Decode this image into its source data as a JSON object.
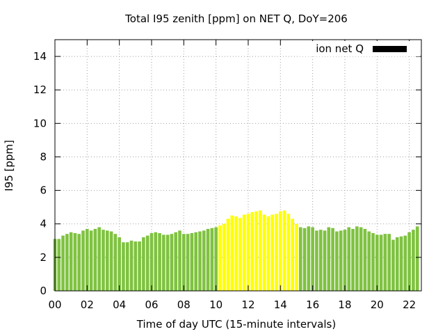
{
  "chart_data": {
    "type": "bar",
    "title": "Total I95 zenith [ppm] on NET Q, DoY=206",
    "xlabel": "Time of day UTC (15-minute intervals)",
    "ylabel": "I95 [ppm]",
    "ylim": [
      0,
      15
    ],
    "xlim": [
      0,
      22.75
    ],
    "yticks": [
      "0",
      "2",
      "4",
      "6",
      "8",
      "10",
      "12",
      "14"
    ],
    "xticks": [
      "00",
      "02",
      "04",
      "06",
      "08",
      "10",
      "12",
      "14",
      "16",
      "18",
      "20",
      "22"
    ],
    "grid": true,
    "legend": {
      "label": "ion net Q",
      "placement": "top-right",
      "swatch_color": "#000000"
    },
    "interval_hours": 0.25,
    "colors": {
      "normal": "#7fc241",
      "highlight": "#ffff00"
    },
    "highlight_range_hours": [
      10.25,
      15.25
    ],
    "values": [
      3.1,
      3.1,
      3.3,
      3.4,
      3.5,
      3.45,
      3.4,
      3.6,
      3.7,
      3.6,
      3.7,
      3.8,
      3.65,
      3.6,
      3.55,
      3.4,
      3.2,
      2.9,
      2.9,
      3.0,
      2.95,
      2.95,
      3.2,
      3.3,
      3.45,
      3.5,
      3.45,
      3.35,
      3.35,
      3.4,
      3.5,
      3.6,
      3.4,
      3.4,
      3.45,
      3.5,
      3.55,
      3.6,
      3.7,
      3.75,
      3.8,
      3.9,
      4.0,
      4.3,
      4.5,
      4.45,
      4.35,
      4.55,
      4.6,
      4.7,
      4.75,
      4.8,
      4.55,
      4.45,
      4.55,
      4.6,
      4.75,
      4.8,
      4.6,
      4.3,
      4.0,
      3.8,
      3.75,
      3.85,
      3.8,
      3.6,
      3.65,
      3.6,
      3.8,
      3.75,
      3.55,
      3.6,
      3.65,
      3.8,
      3.7,
      3.85,
      3.8,
      3.7,
      3.55,
      3.45,
      3.35,
      3.35,
      3.4,
      3.4,
      3.05,
      3.2,
      3.25,
      3.3,
      3.5,
      3.65,
      3.85
    ]
  }
}
